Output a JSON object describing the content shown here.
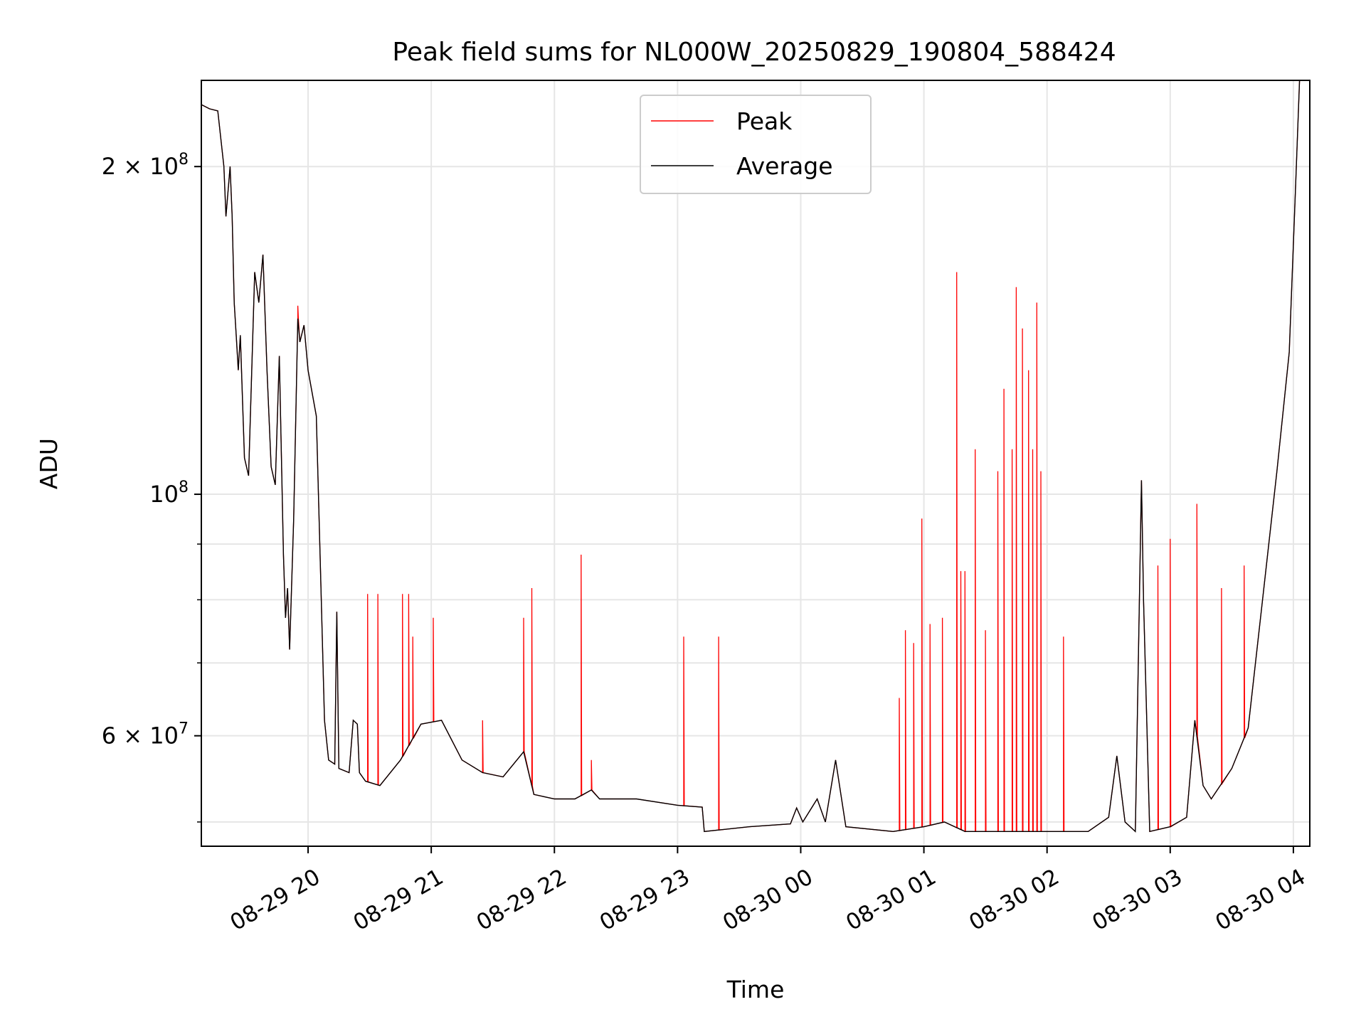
{
  "chart_data": {
    "type": "line",
    "title": "Peak field sums for NL000W_20250829_190804_588424",
    "xlabel": "Time",
    "ylabel": "ADU",
    "yscale": "log",
    "xlim": [
      "2025-08-29 19:08",
      "2025-08-30 04:08"
    ],
    "ylim": [
      47500000,
      240000000
    ],
    "grid": true,
    "legend_position": "upper center",
    "x_ticks": [
      {
        "t": "2025-08-29 20:00",
        "label": "08-29 20"
      },
      {
        "t": "2025-08-29 21:00",
        "label": "08-29 21"
      },
      {
        "t": "2025-08-29 22:00",
        "label": "08-29 22"
      },
      {
        "t": "2025-08-29 23:00",
        "label": "08-29 23"
      },
      {
        "t": "2025-08-30 00:00",
        "label": "08-30 00"
      },
      {
        "t": "2025-08-30 01:00",
        "label": "08-30 01"
      },
      {
        "t": "2025-08-30 02:00",
        "label": "08-30 02"
      },
      {
        "t": "2025-08-30 03:00",
        "label": "08-30 03"
      },
      {
        "t": "2025-08-30 04:00",
        "label": "08-30 04"
      }
    ],
    "y_ticks_major": [
      {
        "v": 60000000,
        "base": "6 × 10",
        "exp": "7"
      },
      {
        "v": 100000000,
        "base": "10",
        "exp": "8"
      },
      {
        "v": 200000000,
        "base": "2 × 10",
        "exp": "8"
      }
    ],
    "y_ticks_minor": [
      50000000,
      70000000,
      80000000,
      90000000
    ],
    "series": [
      {
        "name": "Average",
        "color": "#000000",
        "points": [
          [
            "2025-08-29 19:08",
            228000000
          ],
          [
            "2025-08-29 19:12",
            226000000
          ],
          [
            "2025-08-29 19:16",
            225000000
          ],
          [
            "2025-08-29 19:19",
            200000000
          ],
          [
            "2025-08-29 19:20",
            180000000
          ],
          [
            "2025-08-29 19:22",
            200000000
          ],
          [
            "2025-08-29 19:23",
            180000000
          ],
          [
            "2025-08-29 19:24",
            150000000
          ],
          [
            "2025-08-29 19:25",
            140000000
          ],
          [
            "2025-08-29 19:26",
            130000000
          ],
          [
            "2025-08-29 19:27",
            140000000
          ],
          [
            "2025-08-29 19:29",
            108000000
          ],
          [
            "2025-08-29 19:31",
            104000000
          ],
          [
            "2025-08-29 19:34",
            160000000
          ],
          [
            "2025-08-29 19:36",
            150000000
          ],
          [
            "2025-08-29 19:38",
            166000000
          ],
          [
            "2025-08-29 19:40",
            130000000
          ],
          [
            "2025-08-29 19:42",
            106000000
          ],
          [
            "2025-08-29 19:44",
            102000000
          ],
          [
            "2025-08-29 19:46",
            134000000
          ],
          [
            "2025-08-29 19:48",
            88000000
          ],
          [
            "2025-08-29 19:49",
            77000000
          ],
          [
            "2025-08-29 19:50",
            82000000
          ],
          [
            "2025-08-29 19:51",
            72000000
          ],
          [
            "2025-08-29 19:53",
            95000000
          ],
          [
            "2025-08-29 19:55",
            145000000
          ],
          [
            "2025-08-29 19:56",
            138000000
          ],
          [
            "2025-08-29 19:58",
            143000000
          ],
          [
            "2025-08-29 20:00",
            130000000
          ],
          [
            "2025-08-29 20:04",
            118000000
          ],
          [
            "2025-08-29 20:06",
            86000000
          ],
          [
            "2025-08-29 20:08",
            62000000
          ],
          [
            "2025-08-29 20:10",
            57000000
          ],
          [
            "2025-08-29 20:13",
            56500000
          ],
          [
            "2025-08-29 20:14",
            78000000
          ],
          [
            "2025-08-29 20:15",
            56000000
          ],
          [
            "2025-08-29 20:20",
            55500000
          ],
          [
            "2025-08-29 20:22",
            62000000
          ],
          [
            "2025-08-29 20:24",
            61500000
          ],
          [
            "2025-08-29 20:25",
            55500000
          ],
          [
            "2025-08-29 20:28",
            54500000
          ],
          [
            "2025-08-29 20:35",
            54000000
          ],
          [
            "2025-08-29 20:45",
            57000000
          ],
          [
            "2025-08-29 20:55",
            61500000
          ],
          [
            "2025-08-29 21:05",
            62000000
          ],
          [
            "2025-08-29 21:15",
            57000000
          ],
          [
            "2025-08-29 21:25",
            55500000
          ],
          [
            "2025-08-29 21:35",
            55000000
          ],
          [
            "2025-08-29 21:45",
            58000000
          ],
          [
            "2025-08-29 21:50",
            53000000
          ],
          [
            "2025-08-29 22:00",
            52500000
          ],
          [
            "2025-08-29 22:10",
            52500000
          ],
          [
            "2025-08-29 22:18",
            53500000
          ],
          [
            "2025-08-29 22:22",
            52500000
          ],
          [
            "2025-08-29 22:40",
            52500000
          ],
          [
            "2025-08-29 23:00",
            51800000
          ],
          [
            "2025-08-29 23:12",
            51600000
          ],
          [
            "2025-08-29 23:13",
            49000000
          ],
          [
            "2025-08-29 23:35",
            49500000
          ],
          [
            "2025-08-29 23:55",
            49800000
          ],
          [
            "2025-08-29 23:58",
            51500000
          ],
          [
            "2025-08-30 00:01",
            50000000
          ],
          [
            "2025-08-30 00:08",
            52500000
          ],
          [
            "2025-08-30 00:12",
            50000000
          ],
          [
            "2025-08-30 00:17",
            57000000
          ],
          [
            "2025-08-30 00:22",
            49500000
          ],
          [
            "2025-08-30 00:45",
            49000000
          ],
          [
            "2025-08-30 01:00",
            49500000
          ],
          [
            "2025-08-30 01:10",
            50000000
          ],
          [
            "2025-08-30 01:20",
            49000000
          ],
          [
            "2025-08-30 01:50",
            49000000
          ],
          [
            "2025-08-30 02:20",
            49000000
          ],
          [
            "2025-08-30 02:30",
            50500000
          ],
          [
            "2025-08-30 02:34",
            57500000
          ],
          [
            "2025-08-30 02:38",
            50000000
          ],
          [
            "2025-08-30 02:43",
            49000000
          ],
          [
            "2025-08-30 02:45",
            80000000
          ],
          [
            "2025-08-30 02:46",
            103000000
          ],
          [
            "2025-08-30 02:47",
            80000000
          ],
          [
            "2025-08-30 02:50",
            49000000
          ],
          [
            "2025-08-30 03:00",
            49500000
          ],
          [
            "2025-08-30 03:08",
            50500000
          ],
          [
            "2025-08-30 03:12",
            62000000
          ],
          [
            "2025-08-30 03:16",
            54000000
          ],
          [
            "2025-08-30 03:20",
            52500000
          ],
          [
            "2025-08-30 03:30",
            56000000
          ],
          [
            "2025-08-30 03:38",
            61000000
          ],
          [
            "2025-08-30 03:45",
            80000000
          ],
          [
            "2025-08-30 03:52",
            105000000
          ],
          [
            "2025-08-30 03:58",
            135000000
          ],
          [
            "2025-08-30 04:01",
            190000000
          ],
          [
            "2025-08-30 04:03",
            240000000
          ]
        ]
      },
      {
        "name": "Peak",
        "color": "#ff0000",
        "points": [
          [
            "2025-08-29 19:55",
            149000000
          ],
          [
            "2025-08-29 20:29",
            81000000
          ],
          [
            "2025-08-29 20:34",
            81000000
          ],
          [
            "2025-08-29 20:46",
            81000000
          ],
          [
            "2025-08-29 20:49",
            81000000
          ],
          [
            "2025-08-29 20:51",
            74000000
          ],
          [
            "2025-08-29 21:01",
            77000000
          ],
          [
            "2025-08-29 21:25",
            62000000
          ],
          [
            "2025-08-29 21:45",
            77000000
          ],
          [
            "2025-08-29 21:49",
            82000000
          ],
          [
            "2025-08-29 22:13",
            88000000
          ],
          [
            "2025-08-29 22:18",
            57000000
          ],
          [
            "2025-08-29 23:03",
            74000000
          ],
          [
            "2025-08-29 23:20",
            74000000
          ],
          [
            "2025-08-30 00:48",
            65000000
          ],
          [
            "2025-08-30 00:51",
            75000000
          ],
          [
            "2025-08-30 00:55",
            73000000
          ],
          [
            "2025-08-30 00:59",
            95000000
          ],
          [
            "2025-08-30 01:03",
            76000000
          ],
          [
            "2025-08-30 01:09",
            77000000
          ],
          [
            "2025-08-30 01:16",
            160000000
          ],
          [
            "2025-08-30 01:18",
            85000000
          ],
          [
            "2025-08-30 01:20",
            85000000
          ],
          [
            "2025-08-30 01:25",
            110000000
          ],
          [
            "2025-08-30 01:30",
            75000000
          ],
          [
            "2025-08-30 01:36",
            105000000
          ],
          [
            "2025-08-30 01:39",
            125000000
          ],
          [
            "2025-08-30 01:43",
            110000000
          ],
          [
            "2025-08-30 01:45",
            155000000
          ],
          [
            "2025-08-30 01:48",
            142000000
          ],
          [
            "2025-08-30 01:51",
            130000000
          ],
          [
            "2025-08-30 01:53",
            110000000
          ],
          [
            "2025-08-30 01:55",
            150000000
          ],
          [
            "2025-08-30 01:57",
            105000000
          ],
          [
            "2025-08-30 02:08",
            74000000
          ],
          [
            "2025-08-30 02:54",
            86000000
          ],
          [
            "2025-08-30 03:00",
            91000000
          ],
          [
            "2025-08-30 03:13",
            98000000
          ],
          [
            "2025-08-30 03:25",
            82000000
          ],
          [
            "2025-08-30 03:36",
            86000000
          ]
        ]
      }
    ],
    "legend": [
      {
        "label": "Peak",
        "color": "#ff0000"
      },
      {
        "label": "Average",
        "color": "#000000"
      }
    ]
  }
}
